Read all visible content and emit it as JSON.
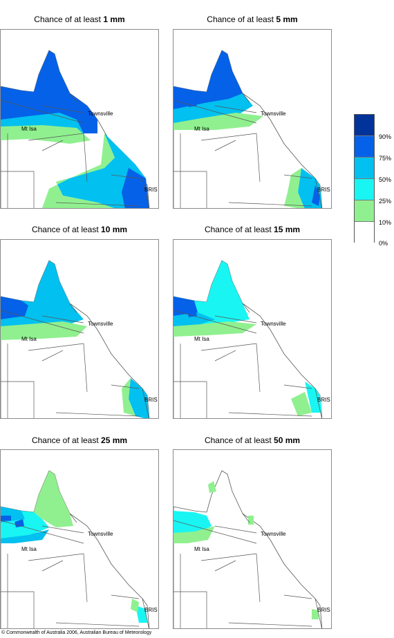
{
  "panels": [
    {
      "prefix": "Chance of at least ",
      "amount": "1 mm"
    },
    {
      "prefix": "Chance of at least ",
      "amount": "5 mm"
    },
    {
      "prefix": "Chance of at least ",
      "amount": "10 mm"
    },
    {
      "prefix": "Chance of at least ",
      "amount": "15 mm"
    },
    {
      "prefix": "Chance of at least ",
      "amount": "25 mm"
    },
    {
      "prefix": "Chance of at least ",
      "amount": "50 mm"
    }
  ],
  "places": {
    "townsville": "Townsville",
    "mt_isa": "Mt Isa",
    "bris": "BRIS"
  },
  "legend": {
    "labels": [
      "90%",
      "75%",
      "50%",
      "25%",
      "10%",
      "0%"
    ],
    "colors": [
      "#02339a",
      "#0561e8",
      "#02c0ef",
      "#19f5f2",
      "#90f08f",
      "#ffffff"
    ]
  },
  "footer": "© Commonwealth of Australia 2006, Australian Bureau of Meteorology"
}
